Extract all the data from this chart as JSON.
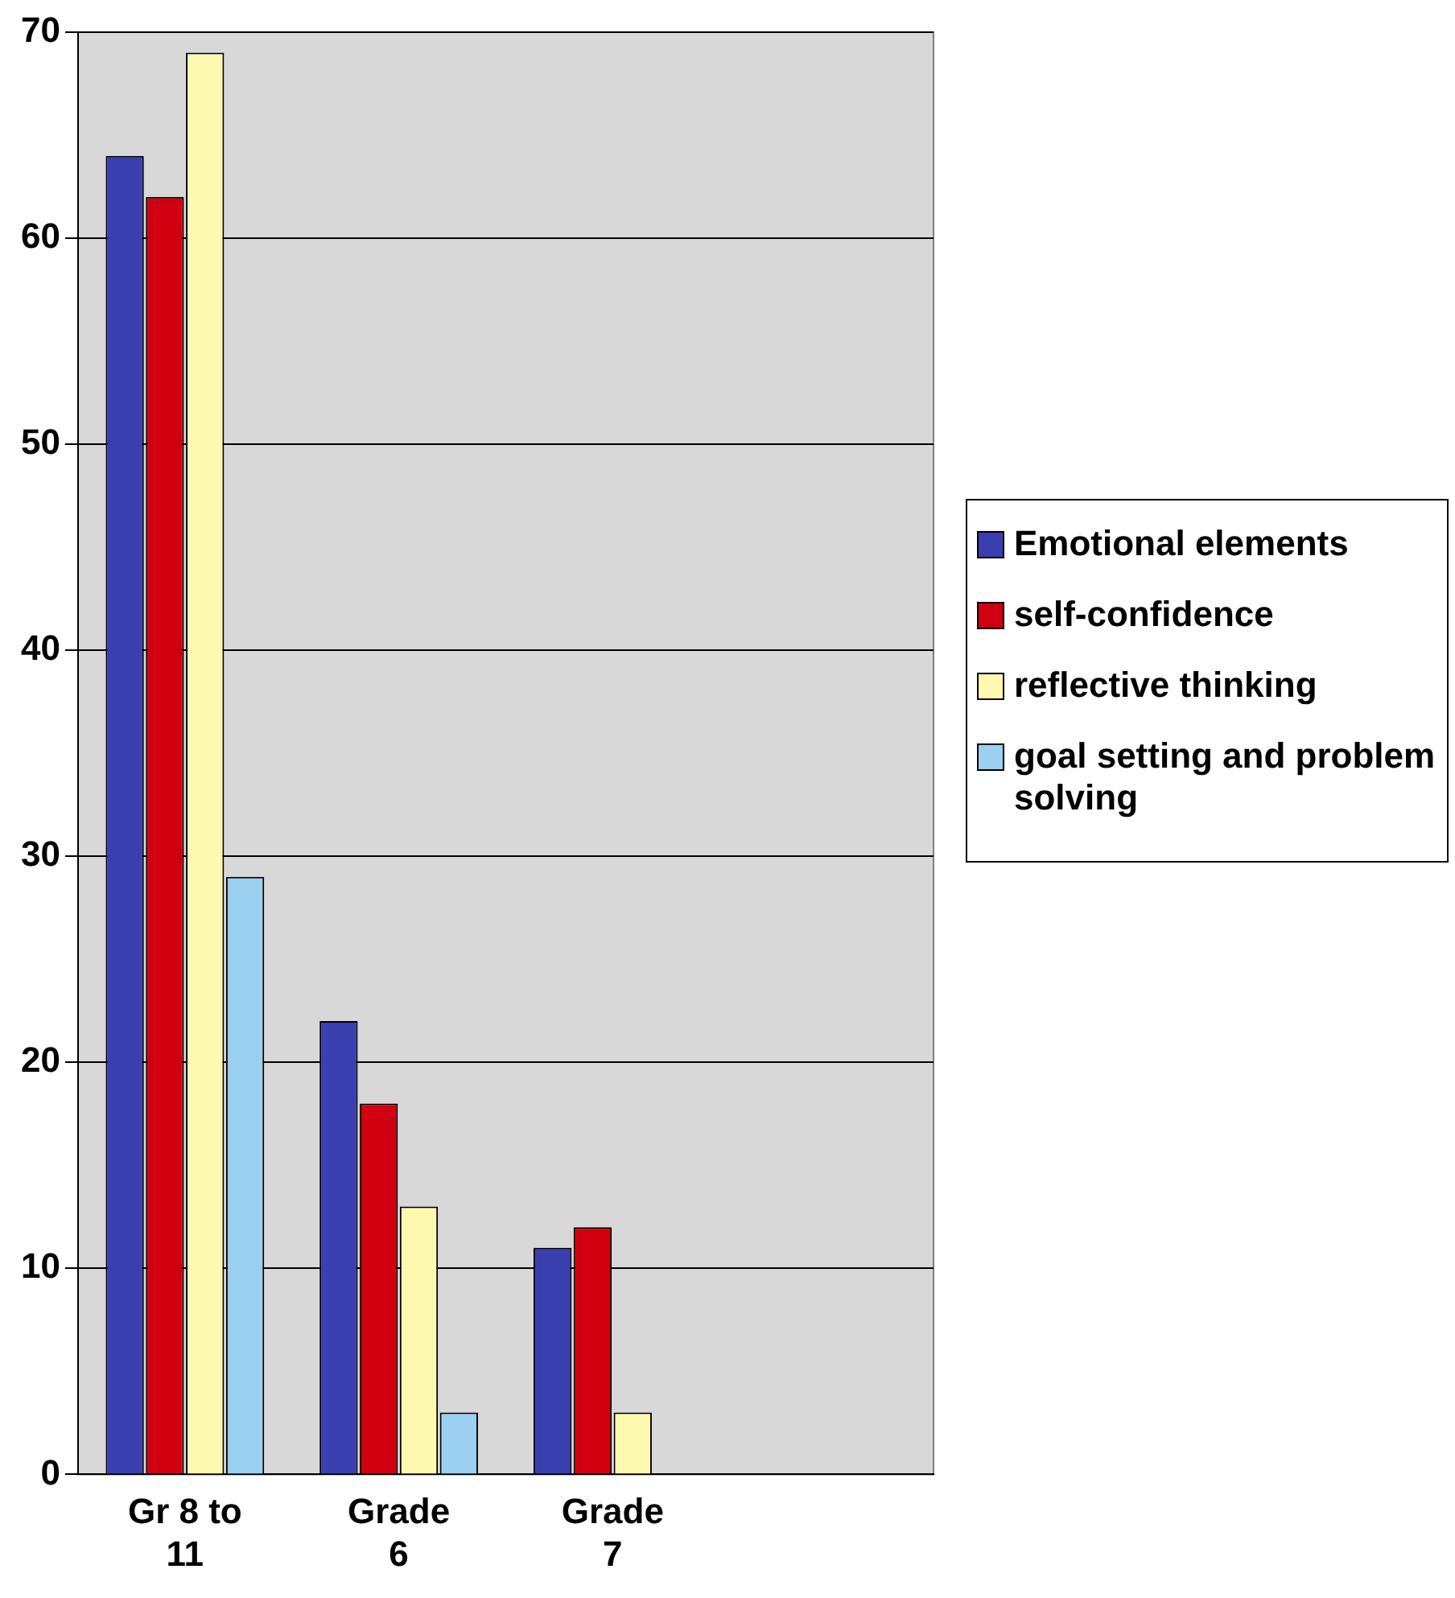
{
  "chart_data": {
    "type": "bar",
    "categories": [
      "Gr 8 to 11",
      "Grade 6",
      "Grade 7",
      null
    ],
    "series": [
      {
        "name": "Emotional elements",
        "color": "#3a3fb0",
        "values": [
          64,
          22,
          11,
          null
        ]
      },
      {
        "name": "self-confidence",
        "color": "#d00010",
        "values": [
          62,
          18,
          12,
          null
        ]
      },
      {
        "name": "reflective thinking",
        "color": "#fdfab0",
        "values": [
          69,
          13,
          3,
          null
        ]
      },
      {
        "name": "goal setting and problem solving",
        "color": "#9cd0f0",
        "values": [
          29,
          3,
          0,
          null
        ]
      }
    ],
    "ylim": [
      0,
      70
    ],
    "yticks": [
      0,
      10,
      20,
      30,
      40,
      50,
      60,
      70
    ],
    "grid": "y",
    "legend": "right"
  }
}
